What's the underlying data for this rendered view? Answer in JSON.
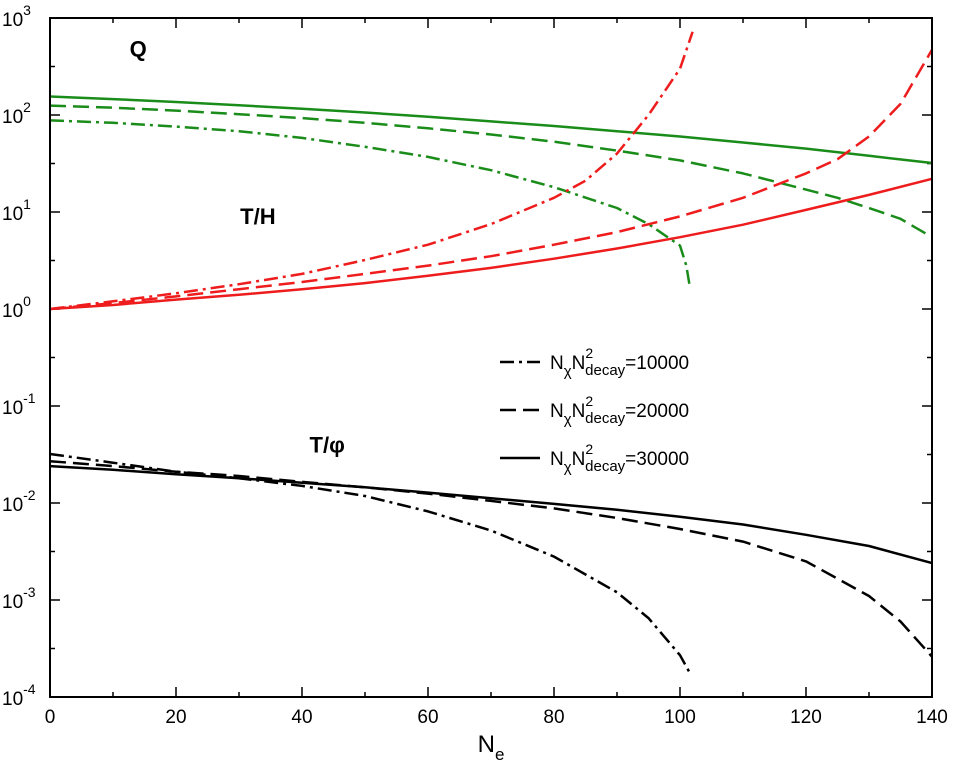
{
  "chart_data": {
    "type": "line",
    "xlabel": "N",
    "xlabel_sub": "e",
    "xlim": [
      0,
      140
    ],
    "ylim": [
      0.0001,
      1000
    ],
    "yscale": "log",
    "grid": false,
    "legend_placement": "center-right",
    "x_ticks": [
      "0",
      "20",
      "40",
      "60",
      "80",
      "100",
      "120",
      "140"
    ],
    "y_ticks": [
      {
        "base": "10",
        "exp": "-4",
        "value": 0.0001
      },
      {
        "base": "10",
        "exp": "-3",
        "value": 0.001
      },
      {
        "base": "10",
        "exp": "-2",
        "value": 0.01
      },
      {
        "base": "10",
        "exp": "-1",
        "value": 0.1
      },
      {
        "base": "10",
        "exp": "0",
        "value": 1
      },
      {
        "base": "10",
        "exp": "1",
        "value": 10
      },
      {
        "base": "10",
        "exp": "2",
        "value": 100
      },
      {
        "base": "10",
        "exp": "3",
        "value": 1000
      }
    ],
    "annotations": [
      {
        "text": "Q",
        "x": 14,
        "y": 400
      },
      {
        "text": "T/H",
        "x": 33,
        "y": 7.5
      },
      {
        "text": "T/φ",
        "x": 44,
        "y": 0.033
      }
    ],
    "legend": [
      {
        "prefix": "N",
        "sub1": "χ",
        "mid": "N",
        "sup": "2",
        "sub2": "decay",
        "suffix": "=10000",
        "dash": "dashdot"
      },
      {
        "prefix": "N",
        "sub1": "χ",
        "mid": "N",
        "sup": "2",
        "sub2": "decay",
        "suffix": "=20000",
        "dash": "dashed"
      },
      {
        "prefix": "N",
        "sub1": "χ",
        "mid": "N",
        "sup": "2",
        "sub2": "decay",
        "suffix": "=30000",
        "dash": "solid"
      }
    ],
    "series": [
      {
        "group": "Q",
        "dash": "dashdot",
        "color": "#1a8c1a",
        "points": [
          [
            0,
            88
          ],
          [
            10,
            83
          ],
          [
            20,
            76
          ],
          [
            30,
            68
          ],
          [
            40,
            58
          ],
          [
            50,
            47
          ],
          [
            60,
            37
          ],
          [
            70,
            27
          ],
          [
            80,
            18
          ],
          [
            90,
            11
          ],
          [
            95,
            7.5
          ],
          [
            100,
            4.5
          ],
          [
            101,
            2.8
          ],
          [
            101.5,
            1.8
          ]
        ]
      },
      {
        "group": "Q",
        "dash": "dashed",
        "color": "#1a8c1a",
        "points": [
          [
            0,
            125
          ],
          [
            10,
            119
          ],
          [
            20,
            111
          ],
          [
            30,
            102
          ],
          [
            40,
            93
          ],
          [
            50,
            83
          ],
          [
            60,
            73
          ],
          [
            70,
            63
          ],
          [
            80,
            53
          ],
          [
            90,
            43
          ],
          [
            100,
            34
          ],
          [
            110,
            25
          ],
          [
            120,
            17
          ],
          [
            125,
            14
          ],
          [
            130,
            11
          ],
          [
            135,
            8.5
          ],
          [
            140,
            5.5
          ]
        ]
      },
      {
        "group": "Q",
        "dash": "solid",
        "color": "#1a8c1a",
        "points": [
          [
            0,
            155
          ],
          [
            10,
            146
          ],
          [
            20,
            136
          ],
          [
            30,
            126
          ],
          [
            40,
            116
          ],
          [
            50,
            106
          ],
          [
            60,
            96
          ],
          [
            70,
            86
          ],
          [
            80,
            77
          ],
          [
            90,
            68
          ],
          [
            100,
            60
          ],
          [
            110,
            52
          ],
          [
            120,
            45
          ],
          [
            130,
            38
          ],
          [
            140,
            32
          ]
        ]
      },
      {
        "group": "T/H",
        "dash": "dashdot",
        "color": "#ee1c1c",
        "points": [
          [
            0,
            1
          ],
          [
            10,
            1.2
          ],
          [
            20,
            1.45
          ],
          [
            30,
            1.8
          ],
          [
            40,
            2.3
          ],
          [
            50,
            3.2
          ],
          [
            60,
            4.6
          ],
          [
            70,
            7.5
          ],
          [
            80,
            14
          ],
          [
            85,
            21
          ],
          [
            90,
            40
          ],
          [
            95,
            100
          ],
          [
            100,
            300
          ],
          [
            102,
            720
          ]
        ]
      },
      {
        "group": "T/H",
        "dash": "dashed",
        "color": "#ee1c1c",
        "points": [
          [
            0,
            1
          ],
          [
            10,
            1.15
          ],
          [
            20,
            1.35
          ],
          [
            30,
            1.6
          ],
          [
            40,
            1.9
          ],
          [
            50,
            2.3
          ],
          [
            60,
            2.8
          ],
          [
            70,
            3.5
          ],
          [
            80,
            4.6
          ],
          [
            90,
            6.2
          ],
          [
            100,
            9
          ],
          [
            110,
            14
          ],
          [
            120,
            25
          ],
          [
            125,
            35
          ],
          [
            130,
            60
          ],
          [
            135,
            130
          ],
          [
            140,
            470
          ]
        ]
      },
      {
        "group": "T/H",
        "dash": "solid",
        "color": "#ee1c1c",
        "points": [
          [
            0,
            1
          ],
          [
            10,
            1.1
          ],
          [
            20,
            1.25
          ],
          [
            30,
            1.4
          ],
          [
            40,
            1.6
          ],
          [
            50,
            1.85
          ],
          [
            60,
            2.2
          ],
          [
            70,
            2.65
          ],
          [
            80,
            3.3
          ],
          [
            90,
            4.2
          ],
          [
            100,
            5.5
          ],
          [
            110,
            7.4
          ],
          [
            120,
            10.5
          ],
          [
            130,
            15
          ],
          [
            140,
            22
          ]
        ]
      },
      {
        "group": "T/phi",
        "dash": "dashdot",
        "color": "#000000",
        "points": [
          [
            0,
            0.032
          ],
          [
            10,
            0.026
          ],
          [
            20,
            0.021
          ],
          [
            30,
            0.018
          ],
          [
            40,
            0.015
          ],
          [
            50,
            0.0118
          ],
          [
            60,
            0.0082
          ],
          [
            70,
            0.0052
          ],
          [
            80,
            0.0028
          ],
          [
            90,
            0.0012
          ],
          [
            95,
            0.00065
          ],
          [
            100,
            0.00027
          ],
          [
            101.5,
            0.00018
          ]
        ]
      },
      {
        "group": "T/phi",
        "dash": "dashed",
        "color": "#000000",
        "points": [
          [
            0,
            0.027
          ],
          [
            10,
            0.024
          ],
          [
            20,
            0.021
          ],
          [
            30,
            0.019
          ],
          [
            40,
            0.0165
          ],
          [
            50,
            0.0145
          ],
          [
            60,
            0.0125
          ],
          [
            70,
            0.0105
          ],
          [
            80,
            0.0088
          ],
          [
            90,
            0.007
          ],
          [
            100,
            0.0054
          ],
          [
            110,
            0.004
          ],
          [
            120,
            0.0025
          ],
          [
            130,
            0.0011
          ],
          [
            135,
            0.0006
          ],
          [
            140,
            0.00026
          ]
        ]
      },
      {
        "group": "T/phi",
        "dash": "solid",
        "color": "#000000",
        "points": [
          [
            0,
            0.024
          ],
          [
            10,
            0.022
          ],
          [
            20,
            0.0198
          ],
          [
            30,
            0.018
          ],
          [
            40,
            0.0162
          ],
          [
            50,
            0.0145
          ],
          [
            60,
            0.0128
          ],
          [
            70,
            0.0112
          ],
          [
            80,
            0.0098
          ],
          [
            90,
            0.0085
          ],
          [
            100,
            0.0072
          ],
          [
            110,
            0.006
          ],
          [
            120,
            0.0047
          ],
          [
            130,
            0.0036
          ],
          [
            140,
            0.0024
          ]
        ]
      }
    ]
  }
}
